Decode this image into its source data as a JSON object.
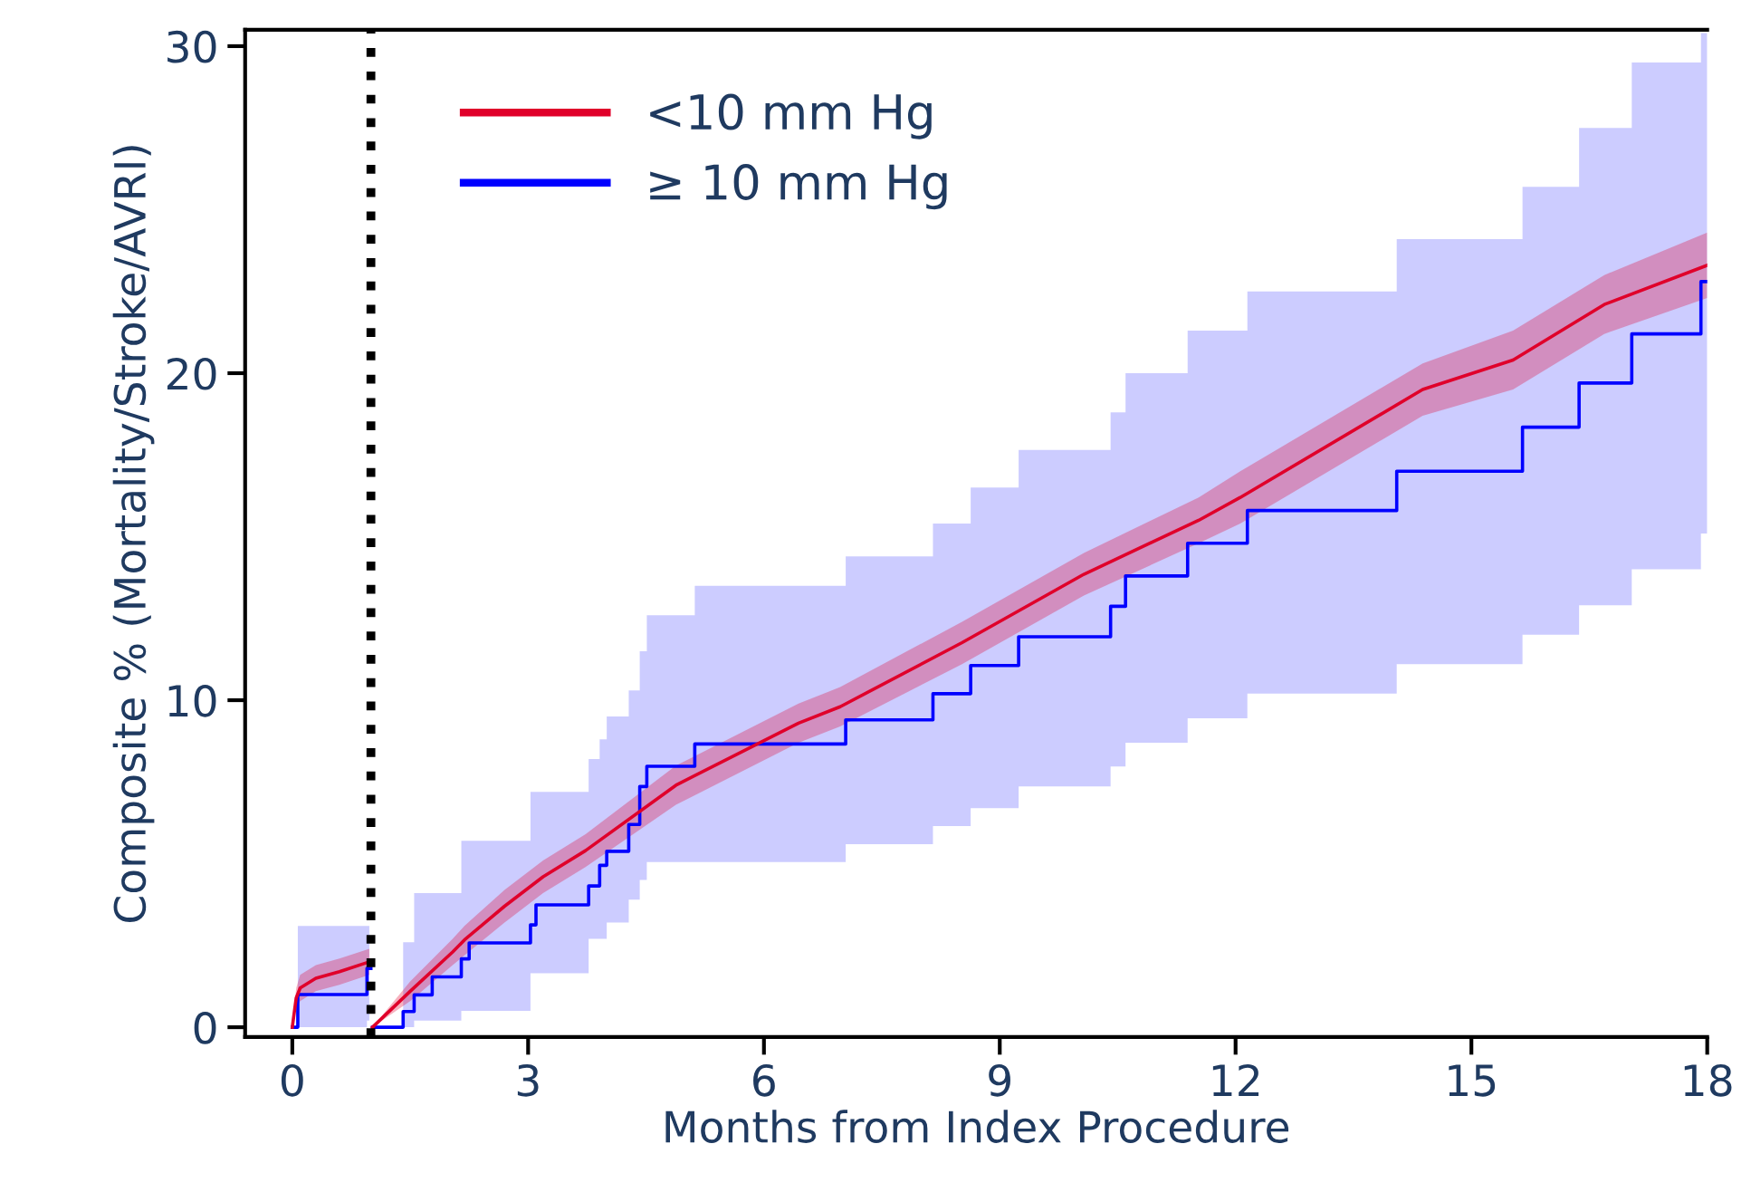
{
  "chart_data": {
    "type": "line",
    "xlabel": "Months from Index Procedure",
    "ylabel": "Composite % (Mortality/Stroke/AVRI)",
    "xlim": [
      -0.6,
      18
    ],
    "ylim": [
      -0.3,
      30.5
    ],
    "xticks": [
      0,
      3,
      6,
      9,
      12,
      15,
      18
    ],
    "yticks": [
      0,
      10,
      20,
      30
    ],
    "grid": false,
    "legend": "top left",
    "marker": "none",
    "line_style": "solid",
    "ref_lines": [
      {
        "axis": "x",
        "value": 1,
        "label": null,
        "color": "#000000",
        "line_style": "dotted"
      }
    ],
    "series": [
      {
        "name": "<10 mm Hg",
        "color": "#e0002a",
        "x": [
          0,
          0.05,
          0.1,
          0.3,
          0.6,
          0.98,
          1.0,
          1.02,
          1.5,
          2.04,
          2.19,
          2.7,
          3.19,
          3.73,
          4.88,
          6.44,
          6.97,
          8.52,
          10.07,
          11.53,
          12.06,
          14.38,
          15.53,
          16.69,
          18.0
        ],
        "values": [
          0,
          0.9,
          1.2,
          1.5,
          1.7,
          2.0,
          null,
          0,
          1.1,
          2.3,
          2.67,
          3.7,
          4.6,
          5.4,
          7.4,
          9.3,
          9.8,
          11.76,
          13.85,
          15.5,
          16.2,
          19.5,
          20.4,
          22.1,
          23.3
        ],
        "lower": [
          0,
          0.6,
          0.8,
          1.1,
          1.3,
          1.6,
          null,
          0,
          0.8,
          1.9,
          2.2,
          3.2,
          4.1,
          4.9,
          6.8,
          8.7,
          9.2,
          11.1,
          13.2,
          14.8,
          15.4,
          18.7,
          19.5,
          21.2,
          22.3
        ],
        "upper": [
          0,
          1.2,
          1.6,
          1.9,
          2.1,
          2.4,
          null,
          0,
          1.4,
          2.7,
          3.1,
          4.2,
          5.1,
          5.9,
          8.0,
          9.9,
          10.4,
          12.4,
          14.5,
          16.2,
          17.0,
          20.3,
          21.3,
          23.0,
          24.3
        ]
      },
      {
        "name": "≥ 10 mm Hg",
        "type": "step",
        "color": "#0000ff",
        "x": [
          0,
          0.07,
          0.95,
          0.98,
          1.0,
          1.02,
          1.41,
          1.55,
          1.78,
          2.15,
          2.25,
          3.03,
          3.1,
          3.77,
          3.91,
          4.0,
          4.28,
          4.42,
          4.51,
          5.12,
          7.04,
          8.15,
          8.63,
          9.24,
          10.41,
          10.6,
          11.39,
          12.15,
          14.05,
          15.65,
          16.37,
          17.04,
          17.92,
          18.0
        ],
        "values": [
          0,
          1.0,
          1.8,
          1.8,
          null,
          0,
          0.48,
          0.99,
          1.54,
          2.09,
          2.58,
          3.13,
          3.74,
          4.32,
          4.95,
          5.38,
          6.2,
          7.36,
          7.98,
          8.66,
          9.4,
          10.2,
          11.06,
          11.94,
          12.87,
          13.8,
          14.8,
          15.8,
          17.0,
          18.35,
          19.7,
          21.2,
          22.8,
          22.8
        ],
        "lower": [
          0,
          0,
          0.2,
          0.2,
          null,
          0,
          0,
          0.2,
          0.2,
          0.5,
          0.5,
          1.65,
          1.65,
          2.7,
          2.7,
          3.2,
          3.9,
          4.5,
          5.05,
          5.05,
          5.6,
          6.15,
          6.7,
          7.36,
          7.97,
          8.7,
          9.45,
          10.2,
          11.1,
          12.0,
          12.9,
          14.0,
          15.1,
          15.1
        ],
        "upper": [
          0,
          3.1,
          3.1,
          3.1,
          null,
          0,
          2.6,
          4.1,
          4.1,
          5.7,
          5.7,
          7.2,
          7.2,
          8.2,
          8.8,
          9.5,
          10.3,
          11.5,
          12.6,
          13.5,
          14.4,
          15.4,
          16.5,
          17.65,
          18.8,
          20.0,
          21.3,
          22.5,
          24.1,
          25.7,
          27.5,
          29.5,
          30.4,
          30.4
        ]
      }
    ]
  }
}
